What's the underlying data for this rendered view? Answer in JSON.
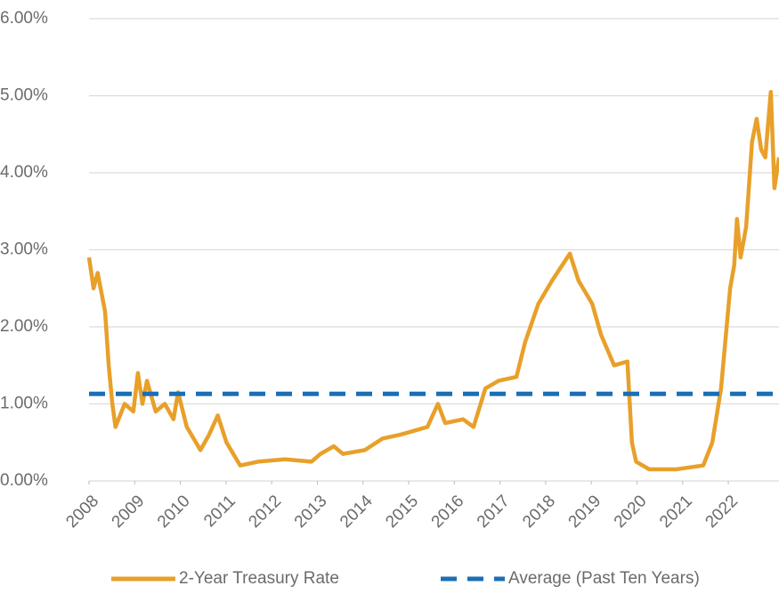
{
  "chart_data": {
    "type": "line",
    "xlim": [
      2008,
      2023.11
    ],
    "xticks": [
      2008,
      2009,
      2010,
      2011,
      2012,
      2013,
      2014,
      2015,
      2016,
      2017,
      2018,
      2019,
      2020,
      2021,
      2022
    ],
    "ylim": [
      0,
      6
    ],
    "yticks": [
      {
        "value": 0,
        "label": "0.00%"
      },
      {
        "value": 1,
        "label": "1.00%"
      },
      {
        "value": 2,
        "label": "2.00%"
      },
      {
        "value": 3,
        "label": "3.00%"
      },
      {
        "value": 4,
        "label": "4.00%"
      },
      {
        "value": 5,
        "label": "5.00%"
      },
      {
        "value": 6,
        "label": "6.00%"
      }
    ],
    "grid": true,
    "legend": "bottom",
    "series": [
      {
        "name": "2-Year Treasury Rate",
        "color": "#e8a02a",
        "style": "solid",
        "x": [
          2008.0,
          2008.1,
          2008.19,
          2008.35,
          2008.43,
          2008.51,
          2008.58,
          2008.78,
          2008.97,
          2009.07,
          2009.17,
          2009.27,
          2009.46,
          2009.66,
          2009.85,
          2009.95,
          2010.14,
          2010.44,
          2010.63,
          2010.82,
          2011.01,
          2011.21,
          2011.31,
          2011.7,
          2012.29,
          2012.87,
          2013.07,
          2013.36,
          2013.56,
          2014.04,
          2014.43,
          2014.82,
          2015.41,
          2015.64,
          2015.8,
          2016.19,
          2016.42,
          2016.68,
          2016.97,
          2017.36,
          2017.55,
          2017.84,
          2018.14,
          2018.53,
          2018.72,
          2019.02,
          2019.21,
          2019.5,
          2019.79,
          2019.89,
          2019.98,
          2020.27,
          2020.86,
          2021.45,
          2021.65,
          2021.84,
          2022.04,
          2022.13,
          2022.19,
          2022.27,
          2022.39,
          2022.52,
          2022.62,
          2022.72,
          2022.81,
          2022.93,
          2023.01,
          2023.11
        ],
        "values": [
          2.9,
          2.5,
          2.7,
          2.2,
          1.5,
          1.0,
          0.7,
          1.0,
          0.9,
          1.4,
          1.0,
          1.3,
          0.9,
          1.0,
          0.8,
          1.15,
          0.7,
          0.4,
          0.6,
          0.85,
          0.5,
          0.3,
          0.2,
          0.25,
          0.28,
          0.25,
          0.35,
          0.45,
          0.35,
          0.4,
          0.55,
          0.6,
          0.7,
          1.0,
          0.75,
          0.8,
          0.7,
          1.2,
          1.3,
          1.35,
          1.8,
          2.3,
          2.6,
          2.95,
          2.6,
          2.3,
          1.9,
          1.5,
          1.55,
          0.5,
          0.25,
          0.15,
          0.15,
          0.2,
          0.5,
          1.2,
          2.5,
          2.8,
          3.4,
          2.9,
          3.3,
          4.4,
          4.7,
          4.3,
          4.2,
          5.05,
          3.8,
          4.2
        ]
      },
      {
        "name": "Average (Past Ten Years)",
        "color": "#1b6fb5",
        "style": "dashed",
        "x": [
          2008,
          2023.11
        ],
        "values": [
          1.13,
          1.13
        ]
      }
    ]
  }
}
